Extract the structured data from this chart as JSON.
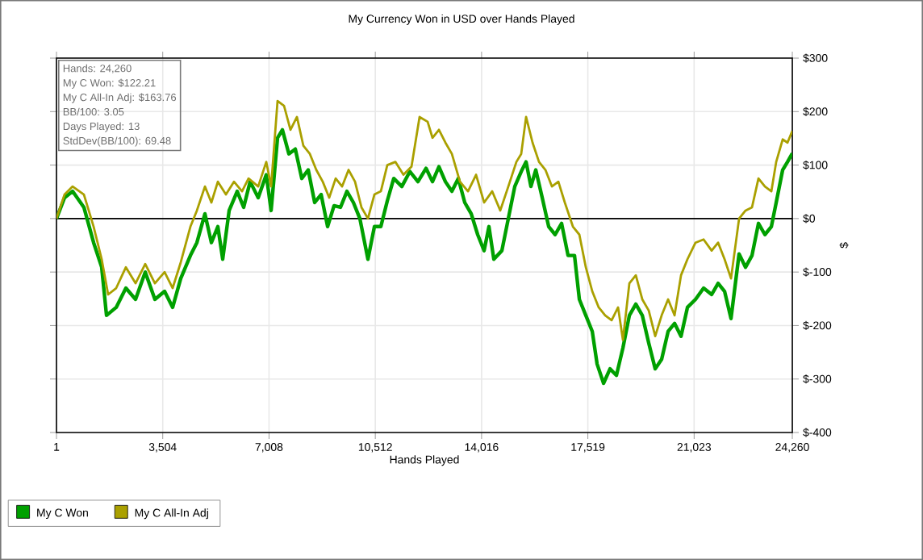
{
  "chart_data": {
    "type": "line",
    "title": "My Currency Won in USD over Hands Played",
    "xlabel": "Hands Played",
    "ylabel": "$",
    "xlim": [
      1,
      24260
    ],
    "xticks": [
      1,
      {
        "value": 3504,
        "label": "3,504"
      },
      {
        "value": 7008,
        "label": "7,008"
      },
      {
        "value": 10512,
        "label": "10,512"
      },
      {
        "value": 14016,
        "label": "14,016"
      },
      {
        "value": 17519,
        "label": "17,519"
      },
      {
        "value": 21023,
        "label": "21,023"
      },
      {
        "value": 24260,
        "label": "24,260"
      }
    ],
    "ylim": [
      -400,
      300
    ],
    "yticks": [
      {
        "value": -400,
        "label": "$-400"
      },
      {
        "value": -300,
        "label": "$-300"
      },
      {
        "value": -200,
        "label": "$-200"
      },
      {
        "value": -100,
        "label": "$-100"
      },
      {
        "value": 0,
        "label": "$0"
      },
      {
        "value": 100,
        "label": "$100"
      },
      {
        "value": 200,
        "label": "$200"
      },
      {
        "value": 300,
        "label": "$300"
      }
    ],
    "grid": true,
    "legend": "bottom left",
    "marker": "none",
    "line_style": "solid",
    "ref_lines": [
      {
        "axis": "y",
        "value": 0,
        "color": "#000000"
      }
    ],
    "annotations": [
      "Hands: 24,260",
      "My C Won: $122.21",
      "My C All-In Adj: $163.76",
      "BB/100: 3.05",
      "Days Played: 13",
      "StdDev(BB/100): 69.48"
    ],
    "series": [
      {
        "name": "My C Won",
        "color": "#00a000",
        "x": [
          1,
          267,
          533,
          905,
          1225,
          1491,
          1650,
          1970,
          2289,
          2608,
          2927,
          3246,
          3565,
          3831,
          4097,
          4417,
          4630,
          4895,
          5108,
          5321,
          5481,
          5693,
          5959,
          6172,
          6385,
          6651,
          6917,
          7077,
          7289,
          7449,
          7662,
          7875,
          8088,
          8300,
          8513,
          8726,
          8939,
          9152,
          9364,
          9577,
          9790,
          10003,
          10269,
          10482,
          10695,
          10907,
          11120,
          11386,
          11652,
          11918,
          12184,
          12397,
          12610,
          12823,
          13036,
          13248,
          13461,
          13674,
          13887,
          14099,
          14259,
          14419,
          14685,
          14897,
          15110,
          15323,
          15483,
          15642,
          15802,
          16015,
          16228,
          16441,
          16654,
          16867,
          17079,
          17239,
          17452,
          17665,
          17824,
          18037,
          18250,
          18463,
          18675,
          18888,
          19101,
          19314,
          19527,
          19740,
          19952,
          20165,
          20378,
          20591,
          20803,
          21069,
          21335,
          21601,
          21814,
          22027,
          22239,
          22505,
          22718,
          22931,
          23144,
          23357,
          23570,
          23729,
          23942,
          24102,
          24260
        ],
        "values": [
          0,
          39,
          51,
          21,
          -45,
          -91,
          -181,
          -166,
          -130,
          -151,
          -100,
          -151,
          -136,
          -166,
          -112,
          -69,
          -45,
          9,
          -45,
          -15,
          -76,
          15,
          51,
          21,
          69,
          39,
          82,
          15,
          151,
          166,
          121,
          130,
          75,
          91,
          30,
          45,
          -15,
          24,
          21,
          51,
          30,
          0,
          -76,
          -15,
          -15,
          33,
          75,
          60,
          88,
          69,
          94,
          69,
          97,
          69,
          51,
          75,
          30,
          9,
          -30,
          -60,
          -15,
          -76,
          -60,
          0,
          60,
          88,
          106,
          60,
          91,
          39,
          -15,
          -30,
          -9,
          -69,
          -69,
          -151,
          -181,
          -211,
          -272,
          -308,
          -281,
          -293,
          -242,
          -181,
          -160,
          -181,
          -233,
          -281,
          -263,
          -211,
          -196,
          -220,
          -166,
          -151,
          -130,
          -142,
          -121,
          -136,
          -187,
          -66,
          -91,
          -69,
          -9,
          -30,
          -15,
          30,
          91,
          106,
          122
        ]
      },
      {
        "name": "My C All-In Adj",
        "color": "#aaa000",
        "x": [
          1,
          267,
          533,
          905,
          1225,
          1491,
          1704,
          1970,
          2289,
          2608,
          2927,
          3246,
          3565,
          3831,
          4097,
          4417,
          4630,
          4895,
          5108,
          5321,
          5587,
          5852,
          6119,
          6332,
          6651,
          6917,
          7077,
          7289,
          7502,
          7715,
          7928,
          8141,
          8354,
          8566,
          8779,
          8992,
          9205,
          9418,
          9631,
          9843,
          10056,
          10269,
          10482,
          10695,
          10907,
          11173,
          11439,
          11705,
          11971,
          12237,
          12397,
          12610,
          12823,
          13036,
          13302,
          13568,
          13834,
          14099,
          14365,
          14632,
          14897,
          15163,
          15323,
          15483,
          15696,
          15909,
          16121,
          16334,
          16547,
          16760,
          17026,
          17239,
          17452,
          17665,
          17877,
          18090,
          18303,
          18516,
          18675,
          18888,
          19101,
          19314,
          19527,
          19740,
          19952,
          20165,
          20378,
          20591,
          20803,
          21069,
          21335,
          21601,
          21814,
          22027,
          22239,
          22505,
          22718,
          22931,
          23144,
          23357,
          23570,
          23729,
          23942,
          24102,
          24260
        ],
        "values": [
          0,
          45,
          60,
          45,
          -15,
          -76,
          -142,
          -130,
          -91,
          -121,
          -85,
          -121,
          -100,
          -130,
          -82,
          -15,
          15,
          60,
          30,
          69,
          45,
          69,
          51,
          75,
          60,
          106,
          60,
          220,
          211,
          166,
          190,
          136,
          121,
          91,
          69,
          39,
          75,
          60,
          91,
          69,
          21,
          0,
          45,
          51,
          100,
          106,
          82,
          97,
          190,
          181,
          151,
          166,
          142,
          121,
          69,
          51,
          82,
          30,
          51,
          15,
          60,
          106,
          121,
          190,
          142,
          106,
          91,
          60,
          69,
          30,
          -15,
          -30,
          -91,
          -136,
          -166,
          -181,
          -190,
          -166,
          -227,
          -121,
          -106,
          -151,
          -172,
          -220,
          -181,
          -151,
          -181,
          -106,
          -76,
          -45,
          -39,
          -60,
          -45,
          -76,
          -112,
          0,
          15,
          21,
          75,
          60,
          51,
          106,
          148,
          142,
          164
        ]
      }
    ]
  }
}
